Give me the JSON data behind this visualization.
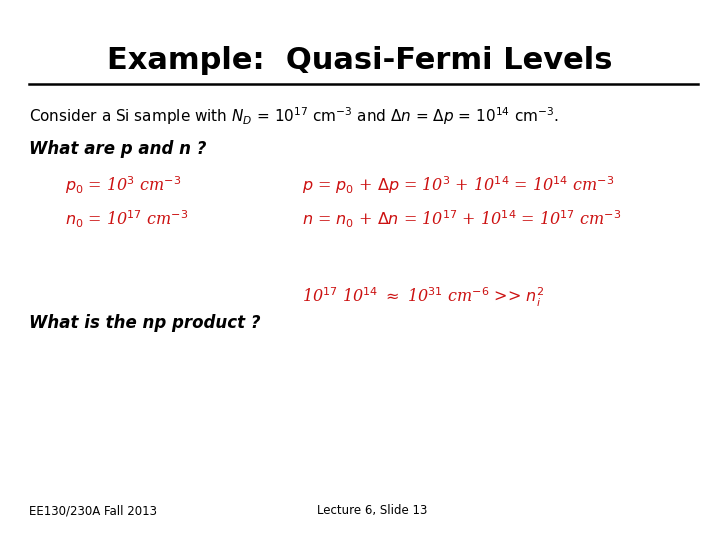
{
  "title": "Example:  Quasi-Fermi Levels",
  "bg_color": "#ffffff",
  "title_color": "#000000",
  "title_fontsize": 22,
  "line_color": "#000000",
  "body_color": "#000000",
  "red_color": "#cc1111",
  "footer_left": "EE130/230A Fall 2013",
  "footer_right": "Lecture 6, Slide 13",
  "consider_line": "Consider a Si sample with $N_D$ = 10$^{17}$ cm$^{-3}$ and $\\Delta n$ = $\\Delta p$ = 10$^{14}$ cm$^{-3}$.",
  "what_pn": "What are p and n ?",
  "what_np": "What is the np product ?",
  "red_eq1_left": "$p_0$ = 10$^3$ cm$^{-3}$",
  "red_eq2_left": "$n_0$ = 10$^{17}$ cm$^{-3}$",
  "red_eq1_right": "$p$ = $p_0$ + $\\Delta p$ = 10$^3$ + 10$^{14}$ = 10$^{14}$ cm$^{-3}$",
  "red_eq2_right": "$n$ = $n_0$ + $\\Delta n$ = 10$^{17}$ + 10$^{14}$ = 10$^{17}$ cm$^{-3}$",
  "red_eq_np": "10$^{17}$ 10$^{14}$ $\\approx$ 10$^{31}$ cm$^{-6}$ >> $n_i^2$"
}
